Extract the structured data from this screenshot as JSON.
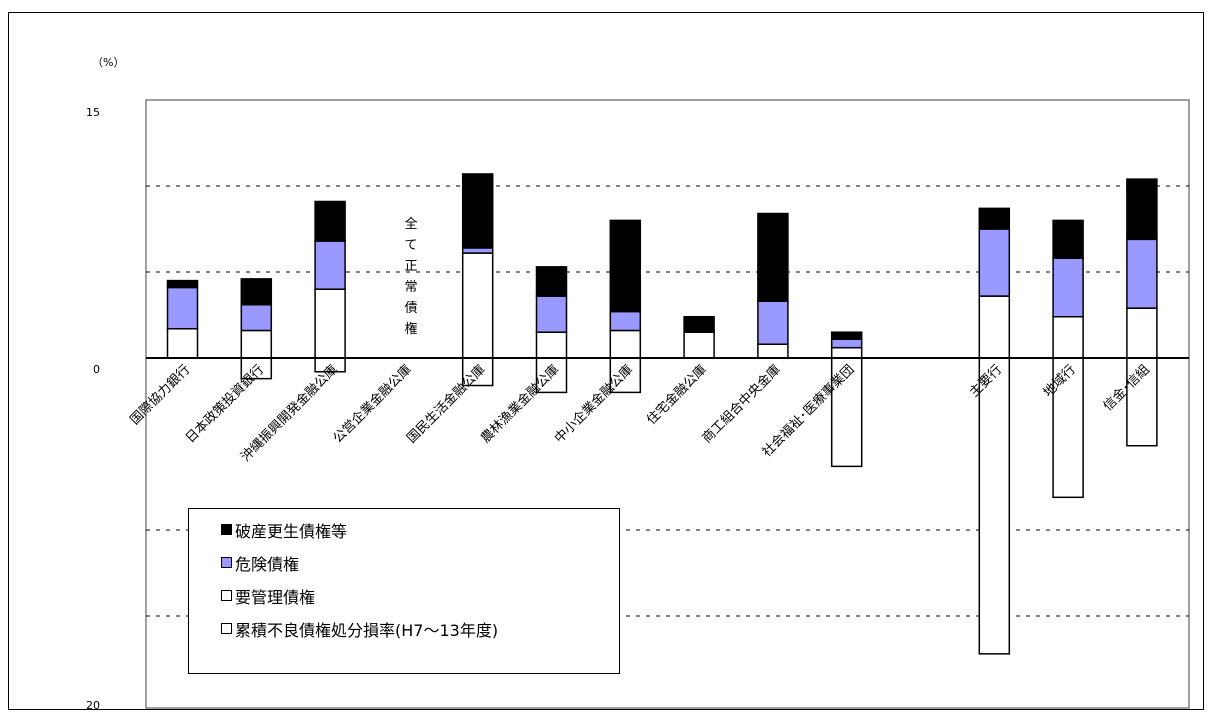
{
  "chart_data": {
    "type": "bar",
    "unit_label": "（%）",
    "y_ticks": [
      {
        "value": 15,
        "label": "15"
      },
      {
        "value": 0,
        "label": "0"
      },
      {
        "value": -20,
        "label": "20"
      }
    ],
    "ylim": [
      -20,
      15
    ],
    "grid": "dashed horizontal",
    "categories": [
      {
        "label": "国際協力銀行",
        "slot": 1
      },
      {
        "label": "日本政策投資銀行",
        "slot": 2
      },
      {
        "label": "沖縄振興開発金融公庫",
        "slot": 3
      },
      {
        "label": "公営企業金融公庫",
        "slot": 4
      },
      {
        "label": "国民生活金融公庫",
        "slot": 5
      },
      {
        "label": "農林漁業金融公庫",
        "slot": 6
      },
      {
        "label": "中小企業金融公庫",
        "slot": 7
      },
      {
        "label": "住宅金融公庫",
        "slot": 8
      },
      {
        "label": "商工組合中央金庫",
        "slot": 9
      },
      {
        "label": "社会福祉･医療事業団",
        "slot": 10
      },
      {
        "label": "主要行",
        "slot": 12
      },
      {
        "label": "地域行",
        "slot": 13
      },
      {
        "label": "信金･信組",
        "slot": 14
      }
    ],
    "series": [
      {
        "name": "要管理債権",
        "color": "#ffffff",
        "values": [
          1.7,
          1.6,
          4.0,
          0,
          6.1,
          1.5,
          1.6,
          1.5,
          0.8,
          0.6,
          3.6,
          2.4,
          2.9
        ]
      },
      {
        "name": "危険債権",
        "color": "#9999ff",
        "values": [
          2.4,
          1.5,
          2.8,
          0,
          0.3,
          2.1,
          1.1,
          0,
          2.5,
          0.5,
          3.9,
          3.4,
          4.0
        ]
      },
      {
        "name": "破産更生債権等",
        "color": "#000000",
        "values": [
          0.4,
          1.5,
          2.3,
          0,
          4.3,
          1.7,
          5.3,
          0.9,
          5.1,
          0.4,
          1.2,
          2.2,
          3.5
        ]
      },
      {
        "name": "累積不良債権処分損率(H7～13年度)",
        "color": "#ffffff",
        "values": [
          0,
          -1.2,
          -0.8,
          0,
          -1.6,
          -2.0,
          -2.0,
          0,
          0,
          -6.3,
          -17.2,
          -8.1,
          -5.1
        ]
      }
    ],
    "annotation": "全て正常債権",
    "legend_position": "bottom-left"
  }
}
